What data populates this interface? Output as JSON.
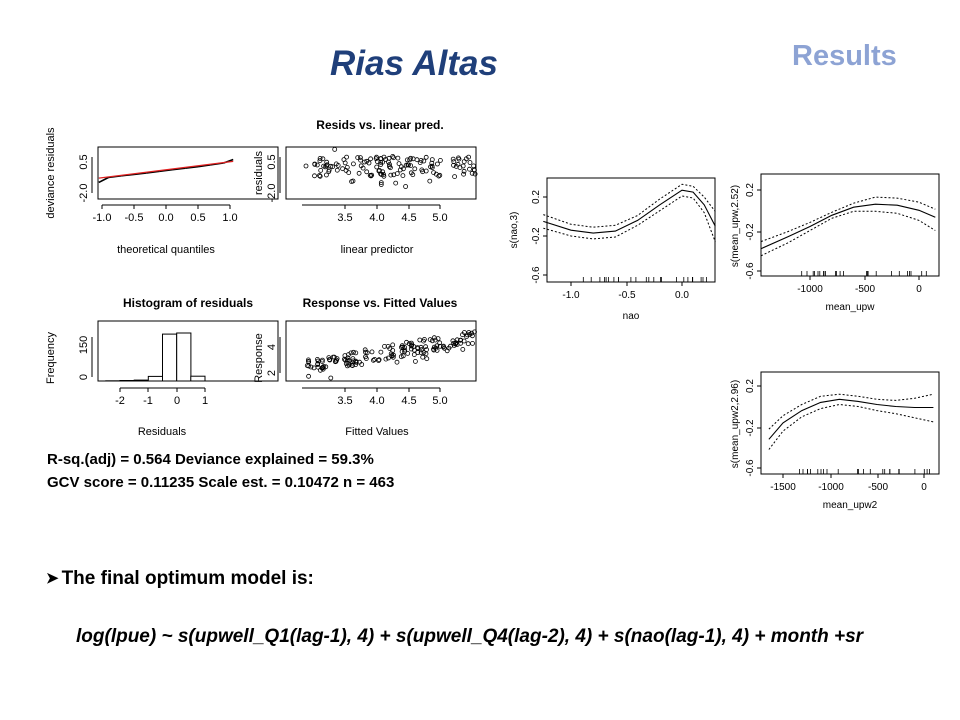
{
  "slide": {
    "title": "Rias Altas",
    "section": "Results"
  },
  "diagnostics": {
    "qq": {
      "title": "",
      "xlabel": "theoretical quantiles",
      "ylabel": "deviance residuals",
      "xticks": [
        "-1.0",
        "-0.5",
        "0.0",
        "0.5",
        "1.0"
      ],
      "yticks": [
        "-2.0",
        "0.5"
      ]
    },
    "resid": {
      "title": "Resids vs. linear pred.",
      "xlabel": "linear predictor",
      "ylabel": "residuals",
      "xticks": [
        "3.5",
        "4.0",
        "4.5",
        "5.0"
      ],
      "yticks": [
        "-2.0",
        "0.5"
      ]
    },
    "hist": {
      "title": "Histogram of residuals",
      "xlabel": "Residuals",
      "ylabel": "Frequency",
      "xticks": [
        "-2",
        "-1",
        "0",
        "1"
      ],
      "yticks": [
        "0",
        "150"
      ]
    },
    "fitted": {
      "title": "Response vs. Fitted Values",
      "xlabel": "Fitted Values",
      "ylabel": "Response",
      "xticks": [
        "3.5",
        "4.0",
        "4.5",
        "5.0"
      ],
      "yticks": [
        "2",
        "4"
      ]
    }
  },
  "stats": {
    "line1": "R-sq.(adj) =  0.564   Deviance explained = 59.3%",
    "line2": "GCV score = 0.11235  Scale est. = 0.10472   n = 463"
  },
  "smooths": {
    "nao": {
      "xlabel": "nao",
      "ylabel": "s(nao,3)",
      "xticks": [
        "-1.0",
        "-0.5",
        "0.0"
      ],
      "yticks": [
        "-0.6",
        "-0.2",
        "0.2"
      ]
    },
    "upw": {
      "xlabel": "mean_upw",
      "ylabel": "s(mean_upw,2.52)",
      "xticks": [
        "-1000",
        "-500",
        "0"
      ],
      "yticks": [
        "-0.6",
        "-0.2",
        "0.2"
      ]
    },
    "upw2": {
      "xlabel": "mean_upw2",
      "ylabel": "s(mean_upw2,2.96)",
      "xticks": [
        "-1500",
        "-1000",
        "-500",
        "0"
      ],
      "yticks": [
        "-0.6",
        "-0.2",
        "0.2"
      ]
    }
  },
  "conclusion": {
    "heading": "The final optimum model is:",
    "formula": "log(lpue) ~ s(upwell_Q1(lag-1), 4) + s(upwell_Q4(lag-2), 4) + s(nao(lag-1), 4) + month +sr"
  },
  "colors": {
    "title": "#1F3F7A",
    "section": "#8DA3D4",
    "qq_line": "#E02020"
  },
  "chart_data": [
    {
      "type": "scatter",
      "title": "",
      "xlabel": "theoretical quantiles",
      "ylabel": "deviance residuals",
      "xticks": [
        "-1.0",
        "-0.5",
        "0.0",
        "0.5",
        "1.0"
      ],
      "yticks": [
        "-2.0",
        "0.5"
      ],
      "reference_line": {
        "x": [
          -1.05,
          1.05
        ],
        "y": [
          -0.8,
          0.55
        ]
      },
      "series": [
        {
          "x": [
            -1.05,
            -0.9,
            -0.7,
            -0.5,
            -0.3,
            -0.1,
            0.1,
            0.3,
            0.5,
            0.7,
            0.9,
            1.05
          ],
          "y": [
            -1.15,
            -0.75,
            -0.62,
            -0.5,
            -0.38,
            -0.25,
            -0.12,
            0.0,
            0.12,
            0.27,
            0.42,
            0.7
          ]
        }
      ]
    },
    {
      "type": "scatter",
      "title": "Resids vs. linear pred.",
      "xlabel": "linear predictor",
      "ylabel": "residuals",
      "xticks": [
        "3.5",
        "4.0",
        "4.5",
        "5.0"
      ],
      "yticks": [
        "-2.0",
        "0.5"
      ]
    },
    {
      "type": "bar",
      "title": "Histogram of residuals",
      "xlabel": "Residuals",
      "ylabel": "Frequency",
      "xticks": [
        "-2",
        "-1",
        "0",
        "1"
      ],
      "yticks": [
        "0",
        "150"
      ],
      "bins": [
        [
          -2.5,
          -2.0
        ],
        [
          -2.0,
          -1.5
        ],
        [
          -1.5,
          -1.0
        ],
        [
          -1.0,
          -0.5
        ],
        [
          -0.5,
          0.0
        ],
        [
          0.0,
          0.5
        ],
        [
          0.5,
          1.0
        ]
      ],
      "values": [
        1,
        2,
        4,
        20,
        205,
        210,
        21
      ]
    },
    {
      "type": "scatter",
      "title": "Response vs. Fitted Values",
      "xlabel": "Fitted Values",
      "ylabel": "Response",
      "xticks": [
        "3.5",
        "4.0",
        "4.5",
        "5.0"
      ],
      "yticks": [
        "2",
        "4"
      ]
    },
    {
      "type": "line",
      "title": "",
      "xlabel": "nao",
      "ylabel": "s(nao,3)",
      "xticks": [
        "-1.0",
        "-0.5",
        "0.0"
      ],
      "yticks": [
        "-0.6",
        "-0.2",
        "0.2"
      ],
      "x": [
        -1.25,
        -1.0,
        -0.8,
        -0.6,
        -0.4,
        -0.2,
        0.0,
        0.1,
        0.2,
        0.3
      ],
      "series": [
        {
          "values": [
            -0.05,
            -0.14,
            -0.17,
            -0.15,
            -0.04,
            0.12,
            0.27,
            0.25,
            0.12,
            -0.1
          ]
        },
        {
          "values": [
            0.02,
            -0.08,
            -0.11,
            -0.09,
            0.01,
            0.18,
            0.33,
            0.31,
            0.2,
            0.05
          ]
        },
        {
          "values": [
            -0.12,
            -0.2,
            -0.23,
            -0.21,
            -0.09,
            0.06,
            0.21,
            0.19,
            0.04,
            -0.26
          ]
        }
      ]
    },
    {
      "type": "line",
      "title": "",
      "xlabel": "mean_upw",
      "ylabel": "s(mean_upw,2.52)",
      "xticks": [
        "-1000",
        "-500",
        "0"
      ],
      "yticks": [
        "-0.6",
        "-0.2",
        "0.2"
      ],
      "x": [
        -1450,
        -1200,
        -1000,
        -800,
        -600,
        -400,
        -200,
        0,
        150
      ],
      "series": [
        {
          "values": [
            -0.38,
            -0.26,
            -0.16,
            -0.05,
            0.03,
            0.06,
            0.05,
            0.0,
            -0.07
          ]
        },
        {
          "values": [
            -0.31,
            -0.21,
            -0.12,
            -0.02,
            0.07,
            0.13,
            0.12,
            0.08,
            0.01
          ]
        },
        {
          "values": [
            -0.45,
            -0.32,
            -0.2,
            -0.08,
            -0.01,
            -0.01,
            -0.03,
            -0.1,
            -0.2
          ]
        }
      ]
    },
    {
      "type": "line",
      "title": "",
      "xlabel": "mean_upw2",
      "ylabel": "s(mean_upw2,2.96)",
      "xticks": [
        "-1500",
        "-1000",
        "-500",
        "0"
      ],
      "yticks": [
        "-0.6",
        "-0.2",
        "0.2"
      ],
      "x": [
        -1650,
        -1500,
        -1300,
        -1100,
        -900,
        -700,
        -500,
        -300,
        -100,
        100
      ],
      "series": [
        {
          "values": [
            -0.32,
            -0.16,
            -0.04,
            0.04,
            0.07,
            0.05,
            0.02,
            0.0,
            -0.01,
            -0.01
          ]
        },
        {
          "values": [
            -0.22,
            -0.09,
            0.02,
            0.1,
            0.12,
            0.1,
            0.07,
            0.06,
            0.08,
            0.12
          ]
        },
        {
          "values": [
            -0.42,
            -0.24,
            -0.1,
            -0.02,
            0.02,
            0.0,
            -0.04,
            -0.07,
            -0.11,
            -0.15
          ]
        }
      ]
    }
  ]
}
